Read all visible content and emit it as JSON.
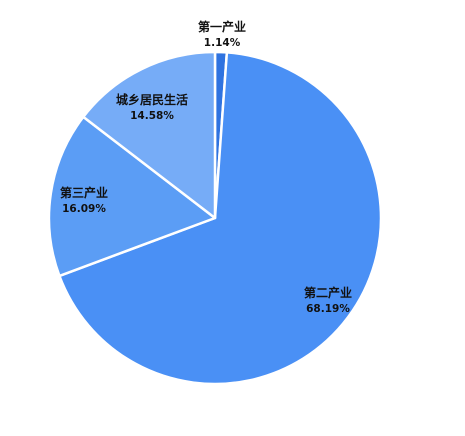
{
  "chart_data": {
    "type": "pie",
    "title": "",
    "categories": [
      "第一产业",
      "第二产业",
      "第三产业",
      "城乡居民生活"
    ],
    "values": [
      1.14,
      68.19,
      16.09,
      14.58
    ],
    "value_labels": [
      "1.14%",
      "68.19%",
      "16.09%",
      "14.58%"
    ],
    "colors": [
      "#2f73e0",
      "#4a90f5",
      "#5b9df5",
      "#76acf7"
    ],
    "start_angle_deg": 0,
    "direction": "clockwise",
    "legend": "none",
    "grid": false
  }
}
